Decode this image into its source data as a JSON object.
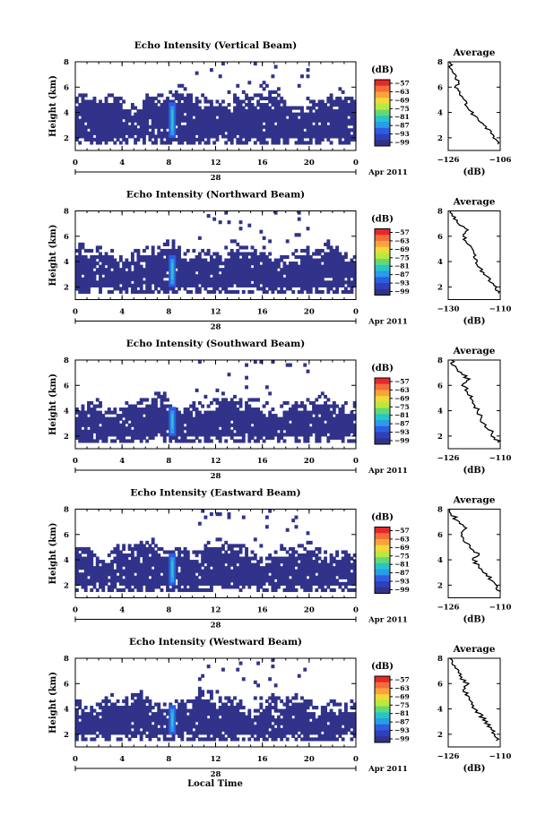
{
  "figure": {
    "xlabel": "Local Time",
    "colorbar_unit": "(dB)",
    "colorbar_ticks": [
      "-57",
      "-63",
      "-69",
      "-75",
      "-81",
      "-87",
      "-93",
      "-99"
    ],
    "colorbar_colors": [
      "#e6282a",
      "#f46d3b",
      "#f9a43a",
      "#f2d83a",
      "#b9e93c",
      "#63d878",
      "#27c4c8",
      "#2b9ce8",
      "#2d5ee0",
      "#3040b8",
      "#31338a"
    ],
    "avg_title": "Average",
    "avg_xlabel": "(dB)",
    "main_xticks": [
      "0",
      "4",
      "8",
      "12",
      "16",
      "20",
      "0"
    ],
    "date_day": "28",
    "date_label": "Apr 2011",
    "main_ylabel": "Height (km)",
    "yticks": [
      "2",
      "4",
      "6",
      "8"
    ],
    "avg_yticks": [
      "2",
      "4",
      "6",
      "8"
    ]
  },
  "chart_data": [
    {
      "type": "heatmap",
      "title": "Echo Intensity (Vertical Beam)",
      "ylabel": "Height (km)",
      "ylim": [
        1,
        8
      ],
      "xlim": [
        0,
        24
      ],
      "color_scale": {
        "unit": "dB",
        "min": -99,
        "max": -57
      },
      "features": {
        "main_echo_band_km": [
          2.0,
          4.5
        ],
        "peak_time_hr": 8.3,
        "peak_value_db": -75
      },
      "average": {
        "title": "Average",
        "xlabel": "(dB)",
        "xlim": [
          -126,
          -106
        ],
        "xticks": [
          "-126",
          "-106"
        ],
        "height": [
          1.5,
          2,
          2.5,
          3,
          3.5,
          4,
          4.5,
          5,
          5.5,
          6,
          6.5,
          7,
          7.5,
          8
        ],
        "value": [
          -106.5,
          -108,
          -110,
          -112,
          -115,
          -117,
          -119,
          -120,
          -121,
          -123,
          -122,
          -124,
          -125,
          -125.5
        ]
      }
    },
    {
      "type": "heatmap",
      "title": "Echo Intensity (Northward Beam)",
      "ylabel": "Height (km)",
      "ylim": [
        1,
        8
      ],
      "xlim": [
        0,
        24
      ],
      "color_scale": {
        "unit": "dB",
        "min": -99,
        "max": -57
      },
      "features": {
        "main_echo_band_km": [
          2.0,
          4.2
        ],
        "peak_time_hr": 8.3,
        "peak_value_db": -81
      },
      "average": {
        "title": "Average",
        "xlabel": "(dB)",
        "xlim": [
          -130,
          -110
        ],
        "xticks": [
          "-130",
          "-110"
        ],
        "height": [
          1.5,
          2,
          2.5,
          3,
          3.5,
          4,
          4.5,
          5,
          5.5,
          6,
          6.5,
          7,
          7.5,
          8
        ],
        "value": [
          -110.5,
          -112,
          -114,
          -116,
          -118,
          -119,
          -120,
          -121,
          -123,
          -124,
          -123,
          -126,
          -128,
          -129
        ]
      }
    },
    {
      "type": "heatmap",
      "title": "Echo Intensity (Southward Beam)",
      "ylabel": "Height (km)",
      "ylim": [
        1,
        8
      ],
      "xlim": [
        0,
        24
      ],
      "color_scale": {
        "unit": "dB",
        "min": -99,
        "max": -57
      },
      "features": {
        "main_echo_band_km": [
          2.0,
          4.0
        ],
        "peak_time_hr": 8.3,
        "peak_value_db": -81
      },
      "average": {
        "title": "Average",
        "xlabel": "(dB)",
        "xlim": [
          -126,
          -110
        ],
        "xticks": [
          "-126",
          "-110"
        ],
        "height": [
          1.5,
          2,
          2.5,
          3,
          3.5,
          4,
          4.5,
          5,
          5.5,
          6,
          6.5,
          7,
          7.5,
          8
        ],
        "value": [
          -110.5,
          -112,
          -113,
          -115,
          -116,
          -117,
          -118,
          -119,
          -120,
          -121,
          -120,
          -122,
          -124,
          -125
        ]
      }
    },
    {
      "type": "heatmap",
      "title": "Echo Intensity (Eastward Beam)",
      "ylabel": "Height (km)",
      "ylim": [
        1,
        8
      ],
      "xlim": [
        0,
        24
      ],
      "color_scale": {
        "unit": "dB",
        "min": -99,
        "max": -57
      },
      "features": {
        "main_echo_band_km": [
          2.0,
          4.2
        ],
        "peak_time_hr": 8.3,
        "peak_value_db": -81
      },
      "average": {
        "title": "Average",
        "xlabel": "(dB)",
        "xlim": [
          -126,
          -110
        ],
        "xticks": [
          "-126",
          "-110"
        ],
        "height": [
          1.5,
          2,
          2.5,
          3,
          3.5,
          4,
          4.5,
          5,
          5.5,
          6,
          6.5,
          7,
          7.5,
          8
        ],
        "value": [
          -110.5,
          -111.5,
          -113,
          -115,
          -117,
          -118,
          -117,
          -119,
          -121,
          -122,
          -121,
          -123,
          -124.5,
          -125.5
        ]
      }
    },
    {
      "type": "heatmap",
      "title": "Echo Intensity (Westward Beam)",
      "ylabel": "Height (km)",
      "ylim": [
        1,
        8
      ],
      "xlim": [
        0,
        24
      ],
      "color_scale": {
        "unit": "dB",
        "min": -99,
        "max": -57
      },
      "features": {
        "main_echo_band_km": [
          2.0,
          4.0
        ],
        "peak_time_hr": 8.3,
        "peak_value_db": -81
      },
      "average": {
        "title": "Average",
        "xlabel": "(dB)",
        "xlim": [
          -126,
          -110
        ],
        "xticks": [
          "-126",
          "-110"
        ],
        "height": [
          1.5,
          2,
          2.5,
          3,
          3.5,
          4,
          4.5,
          5,
          5.5,
          6,
          6.5,
          7,
          7.5,
          8
        ],
        "value": [
          -110.5,
          -111.5,
          -113,
          -114.5,
          -116,
          -118,
          -119,
          -120,
          -121,
          -120,
          -122,
          -123,
          -124.5,
          -125.5
        ]
      }
    }
  ]
}
